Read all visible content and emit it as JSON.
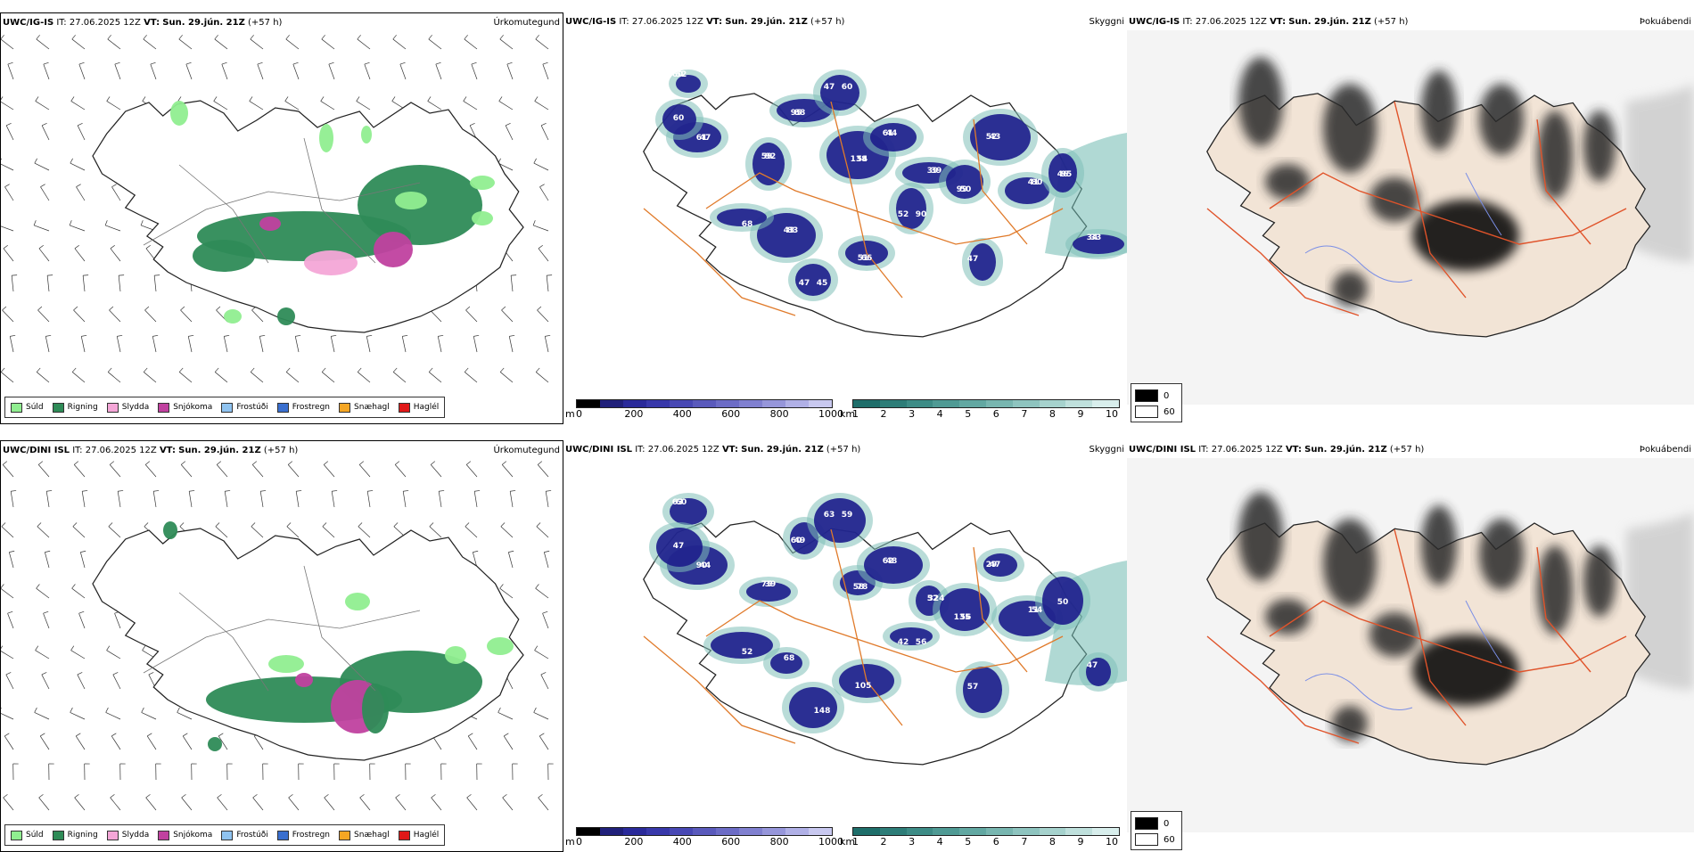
{
  "panels": [
    {
      "model": "UWC/IG-IS",
      "it_label": "IT:",
      "it_value": "27.06.2025 12Z",
      "vt_label": "VT:",
      "vt_value": "Sun. 29.jún. 21Z",
      "lead": "(+57 h)",
      "title": "Úrkomutegund"
    },
    {
      "model": "UWC/IG-IS",
      "it_label": "IT:",
      "it_value": "27.06.2025 12Z",
      "vt_label": "VT:",
      "vt_value": "Sun. 29.jún. 21Z",
      "lead": "(+57 h)",
      "title": "Skyggni"
    },
    {
      "model": "UWC/IG-IS",
      "it_label": "IT:",
      "it_value": "27.06.2025 12Z",
      "vt_label": "VT:",
      "vt_value": "Sun. 29.jún. 21Z",
      "lead": "(+57 h)",
      "title": "Þokuábendi"
    },
    {
      "model": "UWC/DINI ISL",
      "it_label": "IT:",
      "it_value": "27.06.2025 12Z",
      "vt_label": "VT:",
      "vt_value": "Sun. 29.jún. 21Z",
      "lead": "(+57 h)",
      "title": "Úrkomutegund"
    },
    {
      "model": "UWC/DINI ISL",
      "it_label": "IT:",
      "it_value": "27.06.2025 12Z",
      "vt_label": "VT:",
      "vt_value": "Sun. 29.jún. 21Z",
      "lead": "(+57 h)",
      "title": "Skyggni"
    },
    {
      "model": "UWC/DINI ISL",
      "it_label": "IT:",
      "it_value": "27.06.2025 12Z",
      "vt_label": "VT:",
      "vt_value": "Sun. 29.jún. 21Z",
      "lead": "(+57 h)",
      "title": "Þokuábendi"
    }
  ],
  "precip_legend": [
    {
      "label": "Súld",
      "color": "#90ee90"
    },
    {
      "label": "Rigning",
      "color": "#2e8b57"
    },
    {
      "label": "Slydda",
      "color": "#f4a6d7"
    },
    {
      "label": "Snjókoma",
      "color": "#c0419f"
    },
    {
      "label": "Frostúði",
      "color": "#8fc3f0"
    },
    {
      "label": "Frostregn",
      "color": "#3a6fcf"
    },
    {
      "label": "Snæhagl",
      "color": "#f5a623"
    },
    {
      "label": "Haglél",
      "color": "#e01818"
    }
  ],
  "height_scale": {
    "unit": "m",
    "ticks": [
      "0",
      "200",
      "400",
      "600",
      "800",
      "1000"
    ],
    "colors": [
      "#000000",
      "#20207a",
      "#2a2a9a",
      "#3838aa",
      "#4848b4",
      "#5a5abc",
      "#6c6cc6",
      "#8080d0",
      "#9696da",
      "#b0b0e6",
      "#c8c8ef"
    ]
  },
  "vis_scale": {
    "unit": "km",
    "ticks": [
      "1",
      "2",
      "3",
      "4",
      "5",
      "6",
      "7",
      "8",
      "9",
      "10"
    ],
    "colors": [
      "#1e6e6a",
      "#2d7d78",
      "#3d8c86",
      "#4f9a94",
      "#62a8a2",
      "#78b6b0",
      "#8ec4bf",
      "#a6d2cd",
      "#bfe0dc",
      "#d8eeec"
    ]
  },
  "fog_legend": {
    "high": "0",
    "low": "60"
  },
  "cloud_labels": [
    [
      "60",
      "61",
      "59",
      "95",
      "60",
      "138",
      "61",
      "90",
      "39",
      "99",
      "52",
      "41",
      "46",
      "34",
      "45",
      "43",
      "51",
      "47",
      "68",
      "60",
      "52",
      "47",
      "92",
      "88",
      "47",
      "54",
      "44",
      "52",
      "39",
      "50",
      "43",
      "80",
      "95",
      "33",
      "47",
      "83",
      "66"
    ],
    [
      "63",
      "90",
      "75",
      "60",
      "59",
      "58",
      "62",
      "56",
      "52",
      "135",
      "29",
      "11",
      "50",
      "47",
      "148",
      "68",
      "105",
      "57",
      "52",
      "47",
      "60",
      "44",
      "39",
      "49",
      "63",
      "78",
      "48",
      "42",
      "324",
      "56",
      "47",
      "54"
    ]
  ]
}
